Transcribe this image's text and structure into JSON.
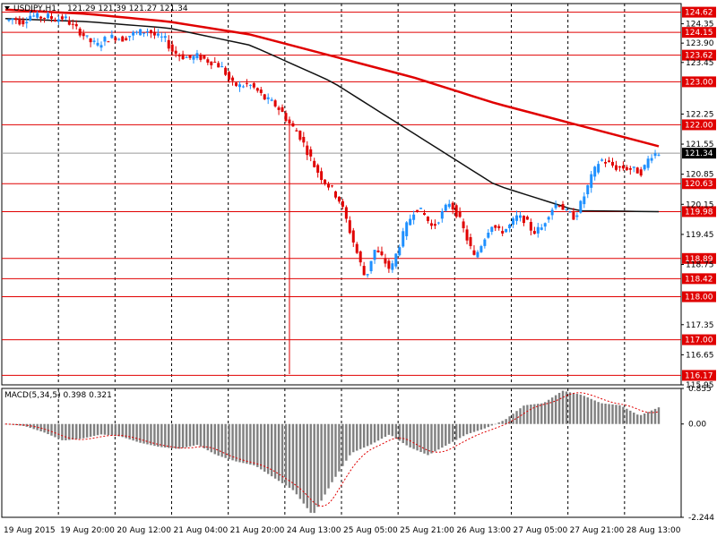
{
  "header": {
    "symbol": "USDJPY,H1",
    "ohlc": "121.29 121.39 121.27 121.34"
  },
  "colors": {
    "bull": "#1e90ff",
    "bear": "#e00000",
    "level_line": "#e00000",
    "ma_slow": "#e00000",
    "ma_fast": "#111111",
    "macd_hist": "#808080",
    "macd_signal": "#e00000",
    "price_tag_bg": "#e00000",
    "current_tag_bg": "#000000"
  },
  "chart_data": [
    {
      "type": "candlestick",
      "title": "",
      "x_labels": [
        "19 Aug 2015",
        "19 Aug 20:00",
        "20 Aug 12:00",
        "21 Aug 04:00",
        "21 Aug 20:00",
        "24 Aug 13:00",
        "25 Aug 05:00",
        "25 Aug 21:00",
        "26 Aug 13:00",
        "27 Aug 05:00",
        "27 Aug 21:00",
        "28 Aug 13:00"
      ],
      "ylim": [
        115.95,
        124.82
      ],
      "y_ticks": [
        124.35,
        123.9,
        123.45,
        122.25,
        121.55,
        120.85,
        120.15,
        119.45,
        118.75,
        117.35,
        116.65,
        115.95
      ],
      "grid": true,
      "horizontal_levels": [
        124.62,
        124.15,
        123.62,
        123.0,
        122.0,
        120.63,
        119.98,
        118.89,
        118.42,
        118.0,
        117.0,
        116.17
      ],
      "current_price": 121.34,
      "anchor_prices": [
        124.42,
        124.48,
        124.38,
        124.55,
        124.5,
        124.52,
        124.45,
        124.5,
        124.3,
        124.15,
        123.95,
        123.85,
        124.0,
        124.05,
        124.0,
        124.1,
        124.15,
        124.2,
        124.05,
        124.0,
        123.7,
        123.6,
        123.55,
        123.6,
        123.5,
        123.45,
        123.3,
        122.95,
        122.9,
        122.95,
        122.8,
        122.6,
        122.5,
        122.3,
        122.0,
        121.8,
        121.4,
        121.0,
        120.7,
        120.5,
        120.2,
        119.6,
        119.0,
        118.4,
        119.1,
        118.9,
        118.6,
        119.2,
        119.7,
        120.1,
        119.9,
        119.6,
        119.9,
        120.2,
        119.9,
        119.4,
        118.9,
        119.3,
        119.7,
        119.5,
        119.6,
        119.85,
        119.8,
        119.5,
        119.6,
        120.0,
        120.2,
        119.95,
        119.85,
        120.3,
        120.8,
        121.2,
        121.1,
        121.0,
        121.0,
        120.95,
        120.9,
        121.3,
        121.35
      ],
      "ma_slow": {
        "period_label": "",
        "x_range": [
          "19 Aug 2015",
          "28 Aug 13:00"
        ],
        "values": [
          124.68,
          124.58,
          124.4,
          124.1,
          123.6,
          123.1,
          122.5,
          122.0,
          121.5
        ]
      },
      "ma_fast": {
        "period_label": "",
        "x_range": [
          "19 Aug 2015",
          "28 Aug 13:00"
        ],
        "values": [
          124.47,
          124.4,
          124.25,
          123.85,
          123.0,
          121.8,
          120.6,
          120.0,
          119.98
        ]
      }
    },
    {
      "type": "bar",
      "title": "MACD(5,34,5) 0.398 0.321",
      "indicator": "MACD",
      "params": "5,34,5",
      "macd_value": "0.398",
      "signal_value": "0.321",
      "ylim": [
        -2.244,
        0.855
      ],
      "y_ticks": [
        0.855,
        0.0,
        -2.244
      ],
      "anchor_histogram": [
        0.0,
        -0.05,
        -0.2,
        -0.4,
        -0.35,
        -0.25,
        -0.3,
        -0.45,
        -0.55,
        -0.6,
        -0.5,
        -0.75,
        -0.9,
        -1.0,
        -1.3,
        -1.6,
        -2.2,
        -1.4,
        -0.7,
        -0.5,
        -0.25,
        -0.55,
        -0.75,
        -0.5,
        -0.25,
        -0.1,
        0.1,
        0.45,
        0.5,
        0.8,
        0.7,
        0.5,
        0.45,
        0.2,
        0.4
      ]
    }
  ]
}
